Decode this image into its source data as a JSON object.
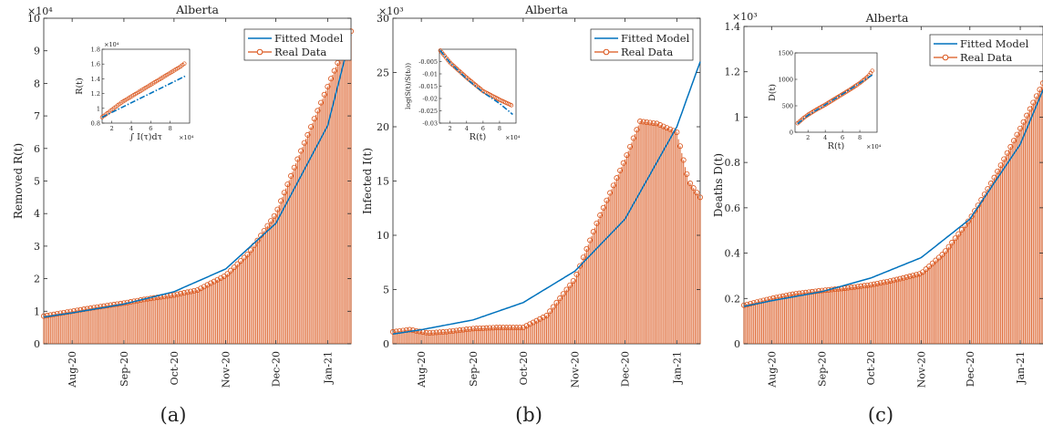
{
  "colors": {
    "fitted": "#0072BD",
    "real": "#D95319",
    "inset_fit": "#0072BD"
  },
  "legend": {
    "fitted_label": "Fitted Model",
    "real_label": "Real Data"
  },
  "date_ticks": [
    "Aug-20",
    "Sep-20",
    "Oct-20",
    "Nov-20",
    "Dec-20",
    "Jan-21"
  ],
  "panels": [
    {
      "title": "Alberta",
      "ylabel": "Removed R(t)",
      "exponent": "×10⁴",
      "subfig": "(a)",
      "inset": {
        "ylabel": "R(t)",
        "xlabel": "∫ I(τ)dτ",
        "exponent_y": "×10⁴",
        "exponent_x": "×10⁴"
      }
    },
    {
      "title": "Alberta",
      "ylabel": "Infected I(t)",
      "exponent": "×10³",
      "subfig": "(b)",
      "inset": {
        "ylabel": "log(S(t)/S(t₀))",
        "xlabel": "R(t)",
        "exponent_y": "",
        "exponent_x": "×10⁴"
      }
    },
    {
      "title": "Alberta",
      "ylabel": "Deaths D(t)",
      "exponent": "×10³",
      "subfig": "(c)",
      "inset": {
        "ylabel": "D(t)",
        "xlabel": "R(t)",
        "exponent_y": "",
        "exponent_x": "×10⁴"
      }
    }
  ],
  "chart_data": [
    {
      "type": "bar",
      "title": "Alberta",
      "ylabel": "Removed R(t)",
      "ylim": [
        0,
        10
      ],
      "yticks": [
        0,
        1,
        2,
        3,
        4,
        5,
        6,
        7,
        8,
        9,
        10
      ],
      "xlim": [
        "2020-07-15",
        "2021-01-15"
      ],
      "xticks": [
        "Aug-20",
        "Sep-20",
        "Oct-20",
        "Nov-20",
        "Dec-20",
        "Jan-21"
      ],
      "series": [
        {
          "name": "Fitted Model",
          "kind": "line",
          "x": [
            "2020-07-15",
            "2020-08-01",
            "2020-09-01",
            "2020-10-01",
            "2020-11-01",
            "2020-12-01",
            "2021-01-01",
            "2021-01-15"
          ],
          "y": [
            0.82,
            0.95,
            1.22,
            1.6,
            2.3,
            3.7,
            6.7,
            9.5
          ]
        },
        {
          "name": "Real Data",
          "kind": "bar+markers",
          "x": [
            "2020-07-15",
            "2020-08-01",
            "2020-08-15",
            "2020-09-01",
            "2020-09-15",
            "2020-10-01",
            "2020-10-15",
            "2020-11-01",
            "2020-11-15",
            "2020-12-01",
            "2020-12-15",
            "2021-01-01",
            "2021-01-15"
          ],
          "y": [
            0.85,
            1.0,
            1.12,
            1.25,
            1.38,
            1.5,
            1.65,
            2.1,
            2.8,
            4.0,
            5.8,
            7.9,
            9.6
          ]
        }
      ],
      "inset": {
        "xlim": [
          1,
          10
        ],
        "ylim": [
          0.8,
          1.8
        ],
        "xticks": [
          2,
          4,
          6,
          8
        ],
        "yticks": [
          0.8,
          1.0,
          1.2,
          1.4,
          1.6,
          1.8
        ],
        "series": [
          {
            "name": "fit",
            "style": "dashdot",
            "x": [
              1,
              9.6
            ],
            "y": [
              0.88,
              1.44
            ]
          },
          {
            "name": "data",
            "style": "markers",
            "x": [
              1,
              2,
              3,
              4,
              5,
              6,
              7,
              8,
              9,
              9.6
            ],
            "y": [
              0.88,
              0.98,
              1.08,
              1.16,
              1.24,
              1.32,
              1.4,
              1.48,
              1.56,
              1.62
            ]
          }
        ]
      }
    },
    {
      "type": "bar",
      "title": "Alberta",
      "ylabel": "Infected I(t)",
      "ylim": [
        0,
        30
      ],
      "yticks": [
        0,
        5,
        10,
        15,
        20,
        25,
        30
      ],
      "xlim": [
        "2020-07-15",
        "2021-01-15"
      ],
      "xticks": [
        "Aug-20",
        "Sep-20",
        "Oct-20",
        "Nov-20",
        "Dec-20",
        "Jan-21"
      ],
      "series": [
        {
          "name": "Fitted Model",
          "kind": "line",
          "x": [
            "2020-07-15",
            "2020-08-01",
            "2020-09-01",
            "2020-10-01",
            "2020-11-01",
            "2020-12-01",
            "2021-01-01",
            "2021-01-15"
          ],
          "y": [
            0.9,
            1.3,
            2.2,
            3.8,
            6.7,
            11.5,
            20.0,
            26.0
          ]
        },
        {
          "name": "Real Data",
          "kind": "bar+markers",
          "x": [
            "2020-07-15",
            "2020-07-25",
            "2020-08-05",
            "2020-08-15",
            "2020-09-01",
            "2020-09-15",
            "2020-10-01",
            "2020-10-15",
            "2020-11-01",
            "2020-11-15",
            "2020-12-01",
            "2020-12-10",
            "2020-12-20",
            "2021-01-01",
            "2021-01-08",
            "2021-01-15"
          ],
          "y": [
            1.1,
            1.3,
            1.0,
            1.1,
            1.4,
            1.5,
            1.5,
            2.6,
            6.0,
            11.5,
            17.0,
            20.5,
            20.3,
            19.5,
            15.0,
            13.5
          ]
        }
      ],
      "inset": {
        "xlim": [
          0.7,
          10
        ],
        "ylim": [
          -0.03,
          0
        ],
        "xticks": [
          2,
          4,
          6,
          8
        ],
        "yticks": [
          -0.005,
          -0.01,
          -0.015,
          -0.02,
          -0.025,
          -0.03
        ],
        "series": [
          {
            "name": "fit",
            "style": "dashdot",
            "x": [
              0.8,
              2,
              4,
              6,
              8,
              9.6
            ],
            "y": [
              -0.0005,
              -0.0055,
              -0.012,
              -0.0175,
              -0.022,
              -0.0265
            ]
          },
          {
            "name": "data",
            "style": "markers",
            "x": [
              0.8,
              2,
              4,
              6,
              8,
              9.6
            ],
            "y": [
              -0.0005,
              -0.0055,
              -0.0115,
              -0.017,
              -0.0205,
              -0.023
            ]
          }
        ]
      }
    },
    {
      "type": "bar",
      "title": "Alberta",
      "ylabel": "Deaths D(t)",
      "ylim": [
        0,
        1.4
      ],
      "yticks": [
        0,
        0.2,
        0.4,
        0.6,
        0.8,
        1,
        1.2,
        1.4
      ],
      "xlim": [
        "2020-07-15",
        "2021-01-15"
      ],
      "xticks": [
        "Aug-20",
        "Sep-20",
        "Oct-20",
        "Nov-20",
        "Dec-20",
        "Jan-21"
      ],
      "series": [
        {
          "name": "Fitted Model",
          "kind": "line",
          "x": [
            "2020-07-15",
            "2020-08-01",
            "2020-09-01",
            "2020-10-01",
            "2020-11-01",
            "2020-12-01",
            "2021-01-01",
            "2021-01-15"
          ],
          "y": [
            0.165,
            0.19,
            0.23,
            0.29,
            0.38,
            0.55,
            0.88,
            1.12
          ]
        },
        {
          "name": "Real Data",
          "kind": "bar+markers",
          "x": [
            "2020-07-15",
            "2020-08-01",
            "2020-08-15",
            "2020-09-01",
            "2020-09-15",
            "2020-10-01",
            "2020-10-15",
            "2020-11-01",
            "2020-11-15",
            "2020-12-01",
            "2020-12-15",
            "2021-01-01",
            "2021-01-15"
          ],
          "y": [
            0.17,
            0.2,
            0.22,
            0.235,
            0.245,
            0.26,
            0.28,
            0.31,
            0.4,
            0.55,
            0.72,
            0.95,
            1.15
          ]
        }
      ],
      "inset": {
        "xlim": [
          0.5,
          10
        ],
        "ylim": [
          0,
          1500
        ],
        "xticks": [
          2,
          4,
          6,
          8
        ],
        "yticks": [
          0,
          500,
          1000,
          1500
        ],
        "series": [
          {
            "name": "fit",
            "style": "dashdot",
            "x": [
              0.8,
              2,
              4,
              6,
              8,
              9.6
            ],
            "y": [
              160,
              320,
              520,
              720,
              930,
              1100
            ]
          },
          {
            "name": "data",
            "style": "markers",
            "x": [
              0.8,
              1.5,
              2,
              3,
              4,
              5,
              6,
              7,
              8,
              9,
              9.6
            ],
            "y": [
              170,
              270,
              330,
              430,
              520,
              620,
              720,
              820,
              930,
              1060,
              1200
            ]
          }
        ]
      }
    }
  ]
}
